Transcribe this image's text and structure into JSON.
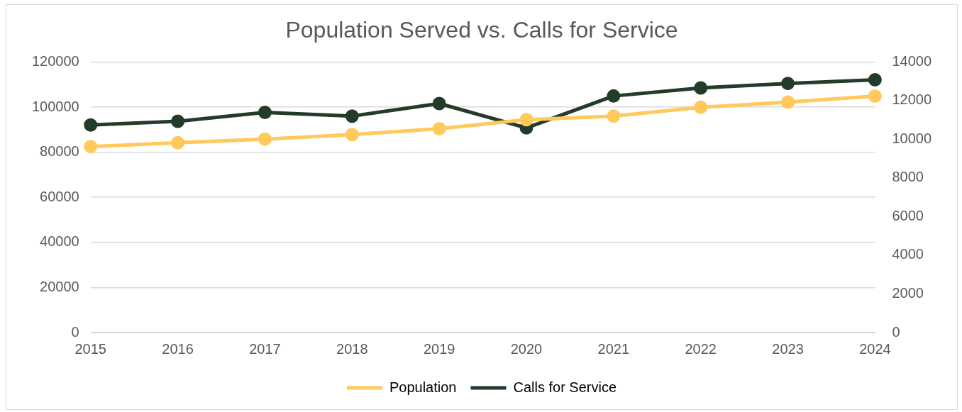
{
  "chart_data": {
    "type": "line",
    "title": "Population Served vs. Calls for Service",
    "categories": [
      "2015",
      "2016",
      "2017",
      "2018",
      "2019",
      "2020",
      "2021",
      "2022",
      "2023",
      "2024"
    ],
    "series": [
      {
        "name": "Population",
        "color": "#ffc95c",
        "values": [
          82500,
          84200,
          85800,
          87800,
          90400,
          94400,
          96000,
          99900,
          102200,
          104900
        ]
      },
      {
        "name": "Calls for Service",
        "color": "#233b29",
        "axis": "y2",
        "values": [
          10740,
          10930,
          11390,
          11200,
          11850,
          10590,
          12240,
          12660,
          12890,
          13080
        ]
      }
    ],
    "ylim": [
      0,
      120000
    ],
    "yticks": [
      0,
      20000,
      40000,
      60000,
      80000,
      100000,
      120000
    ],
    "y2lim": [
      0,
      14000
    ],
    "y2ticks": [
      0,
      2000,
      4000,
      6000,
      8000,
      10000,
      12000,
      14000
    ],
    "grid": "y",
    "legend": "bottom",
    "marker": "circle",
    "line_style": "solid"
  }
}
